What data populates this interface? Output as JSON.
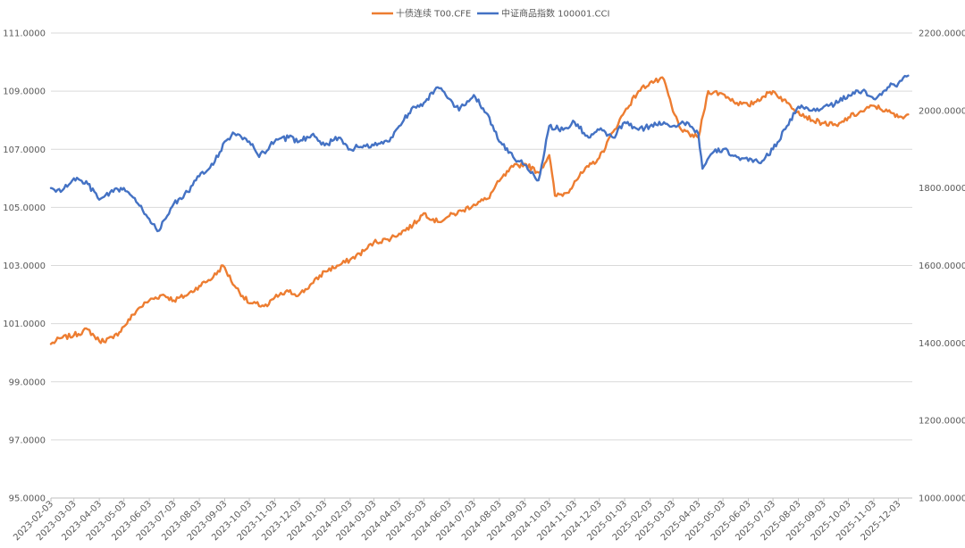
{
  "chart_data": {
    "type": "line",
    "title": "",
    "grid": true,
    "legend_position": "top-center",
    "x_ticks": [
      "2023-02-03",
      "2023-03-03",
      "2023-04-03",
      "2023-05-03",
      "2023-06-03",
      "2023-07-03",
      "2023-08-03",
      "2023-09-03",
      "2023-10-03",
      "2023-11-03",
      "2023-12-03",
      "2024-01-03",
      "2024-02-03",
      "2024-03-03",
      "2024-04-03",
      "2024-05-03",
      "2024-06-03",
      "2024-07-03",
      "2024-08-03",
      "2024-09-03",
      "2024-10-03",
      "2024-11-03",
      "2024-12-03",
      "2025-01-03",
      "2025-02-03",
      "2025-03-03",
      "2025-04-03",
      "2025-05-03",
      "2025-06-03",
      "2025-07-03",
      "2025-08-03",
      "2025-09-03",
      "2025-10-03",
      "2025-11-03",
      "2025-12-03"
    ],
    "y_left": {
      "min": 95,
      "max": 111,
      "ticks": [
        "95.0000",
        "97.0000",
        "99.0000",
        "101.0000",
        "103.0000",
        "105.0000",
        "107.0000",
        "109.0000",
        "111.0000"
      ]
    },
    "y_right": {
      "min": 1000,
      "max": 2200,
      "ticks": [
        "1000.0000",
        "1200.0000",
        "1400.0000",
        "1600.0000",
        "1800.0000",
        "2000.0000",
        "2200.0000"
      ]
    },
    "series": [
      {
        "name": "十债连续 T00.CFE",
        "axis": "left",
        "color": "#ED7D31",
        "points": [
          [
            "2023-02-03",
            100.3
          ],
          [
            "2023-02-15",
            100.5
          ],
          [
            "2023-03-03",
            100.6
          ],
          [
            "2023-03-20",
            100.8
          ],
          [
            "2023-04-03",
            100.4
          ],
          [
            "2023-04-20",
            100.5
          ],
          [
            "2023-05-03",
            100.9
          ],
          [
            "2023-05-20",
            101.5
          ],
          [
            "2023-06-03",
            101.8
          ],
          [
            "2023-06-20",
            102.0
          ],
          [
            "2023-07-03",
            101.8
          ],
          [
            "2023-07-20",
            102.0
          ],
          [
            "2023-08-03",
            102.3
          ],
          [
            "2023-08-20",
            102.6
          ],
          [
            "2023-09-01",
            103.0
          ],
          [
            "2023-09-15",
            102.3
          ],
          [
            "2023-10-03",
            101.7
          ],
          [
            "2023-10-25",
            101.6
          ],
          [
            "2023-11-03",
            101.9
          ],
          [
            "2023-11-20",
            102.1
          ],
          [
            "2023-12-03",
            102.0
          ],
          [
            "2023-12-20",
            102.4
          ],
          [
            "2024-01-03",
            102.8
          ],
          [
            "2024-01-20",
            103.0
          ],
          [
            "2024-02-03",
            103.2
          ],
          [
            "2024-02-20",
            103.5
          ],
          [
            "2024-03-03",
            103.8
          ],
          [
            "2024-03-20",
            103.9
          ],
          [
            "2024-04-03",
            104.1
          ],
          [
            "2024-04-20",
            104.4
          ],
          [
            "2024-05-03",
            104.8
          ],
          [
            "2024-05-20",
            104.5
          ],
          [
            "2024-06-03",
            104.7
          ],
          [
            "2024-06-20",
            104.9
          ],
          [
            "2024-07-03",
            105.1
          ],
          [
            "2024-07-20",
            105.3
          ],
          [
            "2024-08-03",
            105.9
          ],
          [
            "2024-08-20",
            106.4
          ],
          [
            "2024-09-03",
            106.5
          ],
          [
            "2024-09-20",
            106.2
          ],
          [
            "2024-10-03",
            106.8
          ],
          [
            "2024-10-10",
            105.4
          ],
          [
            "2024-10-25",
            105.5
          ],
          [
            "2024-11-03",
            105.9
          ],
          [
            "2024-11-20",
            106.4
          ],
          [
            "2024-12-03",
            106.7
          ],
          [
            "2024-12-20",
            107.6
          ],
          [
            "2025-01-03",
            108.3
          ],
          [
            "2025-01-20",
            109.0
          ],
          [
            "2025-02-03",
            109.3
          ],
          [
            "2025-02-20",
            109.4
          ],
          [
            "2025-03-03",
            108.3
          ],
          [
            "2025-03-15",
            107.6
          ],
          [
            "2025-04-03",
            107.4
          ],
          [
            "2025-04-15",
            109.0
          ],
          [
            "2025-05-03",
            108.9
          ],
          [
            "2025-05-20",
            108.6
          ],
          [
            "2025-06-03",
            108.5
          ],
          [
            "2025-06-20",
            108.8
          ],
          [
            "2025-07-03",
            109.0
          ],
          [
            "2025-07-20",
            108.6
          ],
          [
            "2025-08-03",
            108.3
          ],
          [
            "2025-08-20",
            108.0
          ],
          [
            "2025-09-03",
            107.9
          ],
          [
            "2025-09-20",
            107.8
          ],
          [
            "2025-10-03",
            108.1
          ],
          [
            "2025-10-20",
            108.3
          ],
          [
            "2025-11-03",
            108.5
          ],
          [
            "2025-11-20",
            108.3
          ],
          [
            "2025-12-03",
            108.1
          ],
          [
            "2025-12-15",
            108.2
          ]
        ]
      },
      {
        "name": "中证商品指数 100001.CCI",
        "axis": "right",
        "color": "#4472C4",
        "points": [
          [
            "2023-02-03",
            1800
          ],
          [
            "2023-02-15",
            1790
          ],
          [
            "2023-03-03",
            1825
          ],
          [
            "2023-03-20",
            1810
          ],
          [
            "2023-04-03",
            1770
          ],
          [
            "2023-04-20",
            1790
          ],
          [
            "2023-05-03",
            1800
          ],
          [
            "2023-05-20",
            1760
          ],
          [
            "2023-06-03",
            1720
          ],
          [
            "2023-06-15",
            1690
          ],
          [
            "2023-07-03",
            1760
          ],
          [
            "2023-07-20",
            1790
          ],
          [
            "2023-08-03",
            1830
          ],
          [
            "2023-08-20",
            1860
          ],
          [
            "2023-09-03",
            1920
          ],
          [
            "2023-09-15",
            1940
          ],
          [
            "2023-10-03",
            1920
          ],
          [
            "2023-10-15",
            1880
          ],
          [
            "2023-11-03",
            1920
          ],
          [
            "2023-11-20",
            1930
          ],
          [
            "2023-12-03",
            1920
          ],
          [
            "2023-12-20",
            1940
          ],
          [
            "2024-01-03",
            1910
          ],
          [
            "2024-01-20",
            1930
          ],
          [
            "2024-02-03",
            1900
          ],
          [
            "2024-02-20",
            1910
          ],
          [
            "2024-03-03",
            1910
          ],
          [
            "2024-03-20",
            1920
          ],
          [
            "2024-04-03",
            1960
          ],
          [
            "2024-04-20",
            2010
          ],
          [
            "2024-05-03",
            2020
          ],
          [
            "2024-05-20",
            2060
          ],
          [
            "2024-06-03",
            2030
          ],
          [
            "2024-06-15",
            2000
          ],
          [
            "2024-07-03",
            2040
          ],
          [
            "2024-07-20",
            1990
          ],
          [
            "2024-08-03",
            1920
          ],
          [
            "2024-08-20",
            1880
          ],
          [
            "2024-09-03",
            1860
          ],
          [
            "2024-09-20",
            1820
          ],
          [
            "2024-10-03",
            1960
          ],
          [
            "2024-10-20",
            1950
          ],
          [
            "2024-11-03",
            1970
          ],
          [
            "2024-11-20",
            1930
          ],
          [
            "2024-12-03",
            1950
          ],
          [
            "2024-12-20",
            1930
          ],
          [
            "2025-01-03",
            1970
          ],
          [
            "2025-01-20",
            1950
          ],
          [
            "2025-02-03",
            1960
          ],
          [
            "2025-02-20",
            1970
          ],
          [
            "2025-03-03",
            1960
          ],
          [
            "2025-03-20",
            1970
          ],
          [
            "2025-04-03",
            1940
          ],
          [
            "2025-04-08",
            1850
          ],
          [
            "2025-04-20",
            1890
          ],
          [
            "2025-05-03",
            1900
          ],
          [
            "2025-05-20",
            1880
          ],
          [
            "2025-06-03",
            1870
          ],
          [
            "2025-06-20",
            1870
          ],
          [
            "2025-07-03",
            1900
          ],
          [
            "2025-07-20",
            1960
          ],
          [
            "2025-08-03",
            2010
          ],
          [
            "2025-08-20",
            2000
          ],
          [
            "2025-09-03",
            2010
          ],
          [
            "2025-09-20",
            2020
          ],
          [
            "2025-10-03",
            2040
          ],
          [
            "2025-10-20",
            2050
          ],
          [
            "2025-11-03",
            2030
          ],
          [
            "2025-11-20",
            2060
          ],
          [
            "2025-12-03",
            2070
          ],
          [
            "2025-12-15",
            2090
          ]
        ]
      }
    ]
  }
}
